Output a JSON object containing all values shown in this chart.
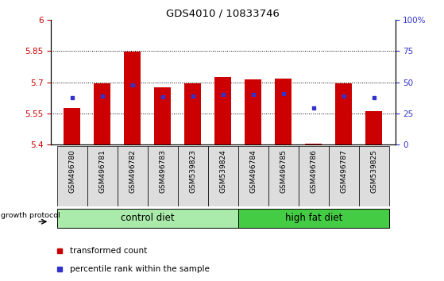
{
  "title": "GDS4010 / 10833746",
  "samples": [
    "GSM496780",
    "GSM496781",
    "GSM496782",
    "GSM496783",
    "GSM539823",
    "GSM539824",
    "GSM496784",
    "GSM496785",
    "GSM496786",
    "GSM496787",
    "GSM539825"
  ],
  "red_values": [
    5.575,
    5.695,
    5.845,
    5.675,
    5.695,
    5.725,
    5.715,
    5.718,
    5.405,
    5.695,
    5.56
  ],
  "blue_values": [
    5.625,
    5.635,
    5.685,
    5.63,
    5.635,
    5.642,
    5.641,
    5.645,
    5.577,
    5.635,
    5.625
  ],
  "ylim": [
    5.4,
    6.0
  ],
  "yticks_left": [
    5.4,
    5.55,
    5.7,
    5.85,
    6.0
  ],
  "ytick_left_labels": [
    "5.4",
    "5.55",
    "5.7",
    "5.85",
    "6"
  ],
  "pct_ticks": [
    0,
    25,
    50,
    75,
    100
  ],
  "pct_labels": [
    "0",
    "25",
    "50",
    "75",
    "100%"
  ],
  "base": 5.4,
  "yrange": 0.6,
  "n_control": 6,
  "n_hfd": 5,
  "label_control": "control diet",
  "label_hfd": "high fat diet",
  "protocol_label": "growth protocol",
  "legend_red": "transformed count",
  "legend_blue": "percentile rank within the sample",
  "bar_color": "#cc0000",
  "blue_color": "#3333cc",
  "control_color": "#aaeaaa",
  "hfd_color": "#44cc44",
  "bar_width": 0.55,
  "title_fontsize": 9.5,
  "tick_fontsize": 7.5,
  "legend_fontsize": 7.5,
  "group_fontsize": 8.5
}
